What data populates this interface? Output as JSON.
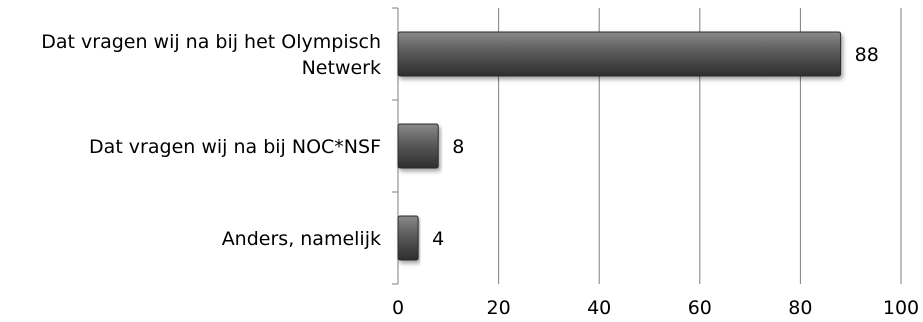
{
  "chart_data": {
    "type": "bar",
    "orientation": "horizontal",
    "categories": [
      [
        "Dat vragen wij na bij het Olympisch",
        "Netwerk"
      ],
      [
        "Dat vragen wij na bij NOC*NSF"
      ],
      [
        "Anders, namelijk"
      ]
    ],
    "values": [
      88,
      8,
      4
    ],
    "data_labels": [
      "88",
      "8",
      "4"
    ],
    "xlim": [
      0,
      100
    ],
    "xticks": [
      0,
      20,
      40,
      60,
      80,
      100
    ],
    "xtick_labels": [
      "0",
      "20",
      "40",
      "60",
      "80",
      "100"
    ],
    "grid": "vertical",
    "legend": "none",
    "bar_color": "#555555",
    "title": "",
    "xlabel": "",
    "ylabel": ""
  }
}
